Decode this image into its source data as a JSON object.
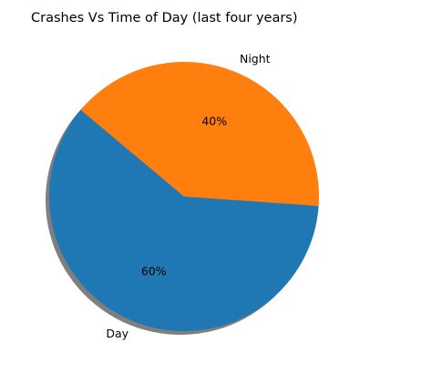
{
  "chart_data": {
    "type": "pie",
    "title": "Crashes Vs Time of Day (last four years)",
    "slices": [
      {
        "label": "Night",
        "value": 40,
        "percent_label": "40%",
        "color": "#ff7f0e"
      },
      {
        "label": "Day",
        "value": 60,
        "percent_label": "60%",
        "color": "#1f77b4"
      }
    ],
    "shadow": true,
    "start_angle_deg": 140
  }
}
